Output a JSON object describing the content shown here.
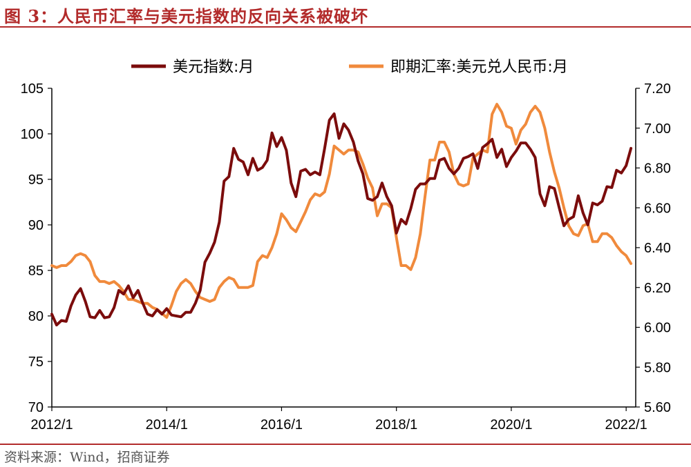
{
  "header": {
    "figure_title": "图 3：人民币汇率与美元指数的反向关系被破坏"
  },
  "footer": {
    "source": "资料来源：Wind，招商证券"
  },
  "chart_data": {
    "type": "line",
    "x_tick_labels": [
      "2012/1",
      "2014/1",
      "2016/1",
      "2018/1",
      "2020/1",
      "2022/1"
    ],
    "y_left_ticks": [
      "70",
      "75",
      "80",
      "85",
      "90",
      "95",
      "100",
      "105"
    ],
    "y_right_ticks": [
      "5.60",
      "5.80",
      "6.00",
      "6.20",
      "6.40",
      "6.60",
      "6.80",
      "7.00",
      "7.20"
    ],
    "ylim_left": [
      70,
      105
    ],
    "ylim_right": [
      5.6,
      7.2
    ],
    "legend_position": "top",
    "grid": false,
    "colors": {
      "usd_index": "#7b0c0c",
      "usdcny": "#f08a3c",
      "axis": "#000000"
    },
    "series": [
      {
        "name": "美元指数:月",
        "axis": "left",
        "points": [
          [
            "2012/1",
            80.2
          ],
          [
            "2012/2",
            79.0
          ],
          [
            "2012/3",
            79.5
          ],
          [
            "2012/4",
            79.4
          ],
          [
            "2012/5",
            81.1
          ],
          [
            "2012/6",
            82.3
          ],
          [
            "2012/7",
            83.0
          ],
          [
            "2012/8",
            81.6
          ],
          [
            "2012/9",
            79.9
          ],
          [
            "2012/10",
            79.8
          ],
          [
            "2012/11",
            80.6
          ],
          [
            "2012/12",
            79.8
          ],
          [
            "2013/1",
            79.9
          ],
          [
            "2013/2",
            80.9
          ],
          [
            "2013/3",
            82.8
          ],
          [
            "2013/4",
            82.4
          ],
          [
            "2013/5",
            83.3
          ],
          [
            "2013/6",
            82.0
          ],
          [
            "2013/7",
            82.8
          ],
          [
            "2013/8",
            81.4
          ],
          [
            "2013/9",
            80.2
          ],
          [
            "2013/10",
            80.0
          ],
          [
            "2013/11",
            80.7
          ],
          [
            "2013/12",
            80.2
          ],
          [
            "2014/1",
            80.8
          ],
          [
            "2014/2",
            80.1
          ],
          [
            "2014/3",
            80.0
          ],
          [
            "2014/4",
            79.9
          ],
          [
            "2014/5",
            80.4
          ],
          [
            "2014/6",
            80.4
          ],
          [
            "2014/7",
            81.4
          ],
          [
            "2014/8",
            82.8
          ],
          [
            "2014/9",
            85.9
          ],
          [
            "2014/10",
            86.9
          ],
          [
            "2014/11",
            88.1
          ],
          [
            "2014/12",
            90.3
          ],
          [
            "2015/1",
            94.8
          ],
          [
            "2015/2",
            95.3
          ],
          [
            "2015/3",
            98.4
          ],
          [
            "2015/4",
            97.2
          ],
          [
            "2015/5",
            96.9
          ],
          [
            "2015/6",
            95.5
          ],
          [
            "2015/7",
            97.3
          ],
          [
            "2015/8",
            96.0
          ],
          [
            "2015/9",
            96.3
          ],
          [
            "2015/10",
            97.1
          ],
          [
            "2015/11",
            100.1
          ],
          [
            "2015/12",
            98.6
          ],
          [
            "2016/1",
            99.6
          ],
          [
            "2016/2",
            98.2
          ],
          [
            "2016/3",
            94.6
          ],
          [
            "2016/4",
            93.1
          ],
          [
            "2016/5",
            95.9
          ],
          [
            "2016/6",
            96.1
          ],
          [
            "2016/7",
            95.5
          ],
          [
            "2016/8",
            95.8
          ],
          [
            "2016/9",
            95.5
          ],
          [
            "2016/10",
            98.4
          ],
          [
            "2016/11",
            101.5
          ],
          [
            "2016/12",
            102.2
          ],
          [
            "2017/1",
            99.5
          ],
          [
            "2017/2",
            101.1
          ],
          [
            "2017/3",
            100.4
          ],
          [
            "2017/4",
            99.1
          ],
          [
            "2017/5",
            97.0
          ],
          [
            "2017/6",
            95.6
          ],
          [
            "2017/7",
            92.9
          ],
          [
            "2017/8",
            92.7
          ],
          [
            "2017/9",
            93.1
          ],
          [
            "2017/10",
            94.6
          ],
          [
            "2017/11",
            93.1
          ],
          [
            "2017/12",
            92.1
          ],
          [
            "2018/1",
            89.1
          ],
          [
            "2018/2",
            90.6
          ],
          [
            "2018/3",
            90.1
          ],
          [
            "2018/4",
            91.8
          ],
          [
            "2018/5",
            93.9
          ],
          [
            "2018/6",
            94.5
          ],
          [
            "2018/7",
            94.5
          ],
          [
            "2018/8",
            95.1
          ],
          [
            "2018/9",
            95.1
          ],
          [
            "2018/10",
            97.1
          ],
          [
            "2018/11",
            97.3
          ],
          [
            "2018/12",
            96.2
          ],
          [
            "2019/1",
            95.6
          ],
          [
            "2019/2",
            96.2
          ],
          [
            "2019/3",
            97.3
          ],
          [
            "2019/4",
            97.5
          ],
          [
            "2019/5",
            97.8
          ],
          [
            "2019/6",
            96.2
          ],
          [
            "2019/7",
            98.5
          ],
          [
            "2019/8",
            98.9
          ],
          [
            "2019/9",
            99.4
          ],
          [
            "2019/10",
            97.4
          ],
          [
            "2019/11",
            98.3
          ],
          [
            "2019/12",
            96.4
          ],
          [
            "2020/1",
            97.4
          ],
          [
            "2020/2",
            98.1
          ],
          [
            "2020/3",
            99.0
          ],
          [
            "2020/4",
            99.0
          ],
          [
            "2020/5",
            98.3
          ],
          [
            "2020/6",
            97.4
          ],
          [
            "2020/7",
            93.4
          ],
          [
            "2020/8",
            92.1
          ],
          [
            "2020/9",
            94.2
          ],
          [
            "2020/10",
            94.0
          ],
          [
            "2020/11",
            91.9
          ],
          [
            "2020/12",
            89.9
          ],
          [
            "2021/1",
            90.6
          ],
          [
            "2021/2",
            90.9
          ],
          [
            "2021/3",
            93.2
          ],
          [
            "2021/4",
            91.3
          ],
          [
            "2021/5",
            90.0
          ],
          [
            "2021/6",
            92.4
          ],
          [
            "2021/7",
            92.2
          ],
          [
            "2021/8",
            92.6
          ],
          [
            "2021/9",
            94.2
          ],
          [
            "2021/10",
            94.1
          ],
          [
            "2021/11",
            96.0
          ],
          [
            "2021/12",
            95.7
          ],
          [
            "2022/1",
            96.5
          ],
          [
            "2022/2",
            98.4
          ]
        ]
      },
      {
        "name": "即期汇率:美元兑人民币:月",
        "axis": "right",
        "points": [
          [
            "2012/1",
            6.31
          ],
          [
            "2012/2",
            6.3
          ],
          [
            "2012/3",
            6.31
          ],
          [
            "2012/4",
            6.31
          ],
          [
            "2012/5",
            6.33
          ],
          [
            "2012/6",
            6.36
          ],
          [
            "2012/7",
            6.37
          ],
          [
            "2012/8",
            6.36
          ],
          [
            "2012/9",
            6.33
          ],
          [
            "2012/10",
            6.26
          ],
          [
            "2012/11",
            6.23
          ],
          [
            "2012/12",
            6.23
          ],
          [
            "2013/1",
            6.22
          ],
          [
            "2013/2",
            6.23
          ],
          [
            "2013/3",
            6.21
          ],
          [
            "2013/4",
            6.18
          ],
          [
            "2013/5",
            6.14
          ],
          [
            "2013/6",
            6.14
          ],
          [
            "2013/7",
            6.13
          ],
          [
            "2013/8",
            6.12
          ],
          [
            "2013/9",
            6.12
          ],
          [
            "2013/10",
            6.1
          ],
          [
            "2013/11",
            6.09
          ],
          [
            "2013/12",
            6.07
          ],
          [
            "2014/1",
            6.05
          ],
          [
            "2014/2",
            6.11
          ],
          [
            "2014/3",
            6.18
          ],
          [
            "2014/4",
            6.22
          ],
          [
            "2014/5",
            6.24
          ],
          [
            "2014/6",
            6.22
          ],
          [
            "2014/7",
            6.18
          ],
          [
            "2014/8",
            6.15
          ],
          [
            "2014/9",
            6.14
          ],
          [
            "2014/10",
            6.13
          ],
          [
            "2014/11",
            6.14
          ],
          [
            "2014/12",
            6.2
          ],
          [
            "2015/1",
            6.23
          ],
          [
            "2015/2",
            6.25
          ],
          [
            "2015/3",
            6.24
          ],
          [
            "2015/4",
            6.2
          ],
          [
            "2015/5",
            6.2
          ],
          [
            "2015/6",
            6.2
          ],
          [
            "2015/7",
            6.21
          ],
          [
            "2015/8",
            6.33
          ],
          [
            "2015/9",
            6.36
          ],
          [
            "2015/10",
            6.35
          ],
          [
            "2015/11",
            6.4
          ],
          [
            "2015/12",
            6.47
          ],
          [
            "2016/1",
            6.57
          ],
          [
            "2016/2",
            6.54
          ],
          [
            "2016/3",
            6.5
          ],
          [
            "2016/4",
            6.48
          ],
          [
            "2016/5",
            6.53
          ],
          [
            "2016/6",
            6.58
          ],
          [
            "2016/7",
            6.64
          ],
          [
            "2016/8",
            6.67
          ],
          [
            "2016/9",
            6.66
          ],
          [
            "2016/10",
            6.68
          ],
          [
            "2016/11",
            6.77
          ],
          [
            "2016/12",
            6.91
          ],
          [
            "2017/1",
            6.89
          ],
          [
            "2017/2",
            6.87
          ],
          [
            "2017/3",
            6.89
          ],
          [
            "2017/4",
            6.89
          ],
          [
            "2017/5",
            6.88
          ],
          [
            "2017/6",
            6.82
          ],
          [
            "2017/7",
            6.75
          ],
          [
            "2017/8",
            6.7
          ],
          [
            "2017/9",
            6.56
          ],
          [
            "2017/10",
            6.62
          ],
          [
            "2017/11",
            6.62
          ],
          [
            "2017/12",
            6.6
          ],
          [
            "2018/1",
            6.45
          ],
          [
            "2018/2",
            6.31
          ],
          [
            "2018/3",
            6.31
          ],
          [
            "2018/4",
            6.29
          ],
          [
            "2018/5",
            6.35
          ],
          [
            "2018/6",
            6.47
          ],
          [
            "2018/7",
            6.66
          ],
          [
            "2018/8",
            6.84
          ],
          [
            "2018/9",
            6.84
          ],
          [
            "2018/10",
            6.93
          ],
          [
            "2018/11",
            6.93
          ],
          [
            "2018/12",
            6.88
          ],
          [
            "2019/1",
            6.77
          ],
          [
            "2019/2",
            6.72
          ],
          [
            "2019/3",
            6.71
          ],
          [
            "2019/4",
            6.72
          ],
          [
            "2019/5",
            6.85
          ],
          [
            "2019/6",
            6.87
          ],
          [
            "2019/7",
            6.89
          ],
          [
            "2019/8",
            6.88
          ],
          [
            "2019/9",
            7.07
          ],
          [
            "2019/10",
            7.12
          ],
          [
            "2019/11",
            7.08
          ],
          [
            "2019/12",
            7.01
          ],
          [
            "2020/1",
            7.0
          ],
          [
            "2020/2",
            6.92
          ],
          [
            "2020/3",
            6.99
          ],
          [
            "2020/4",
            7.02
          ],
          [
            "2020/5",
            7.08
          ],
          [
            "2020/6",
            7.11
          ],
          [
            "2020/7",
            7.08
          ],
          [
            "2020/8",
            7.0
          ],
          [
            "2020/9",
            6.88
          ],
          [
            "2020/10",
            6.78
          ],
          [
            "2020/11",
            6.7
          ],
          [
            "2020/12",
            6.6
          ],
          [
            "2021/1",
            6.51
          ],
          [
            "2021/2",
            6.47
          ],
          [
            "2021/3",
            6.46
          ],
          [
            "2021/4",
            6.51
          ],
          [
            "2021/5",
            6.52
          ],
          [
            "2021/6",
            6.43
          ],
          [
            "2021/7",
            6.43
          ],
          [
            "2021/8",
            6.47
          ],
          [
            "2021/9",
            6.47
          ],
          [
            "2021/10",
            6.45
          ],
          [
            "2021/11",
            6.41
          ],
          [
            "2021/12",
            6.38
          ],
          [
            "2022/1",
            6.36
          ],
          [
            "2022/2",
            6.32
          ]
        ]
      }
    ]
  }
}
